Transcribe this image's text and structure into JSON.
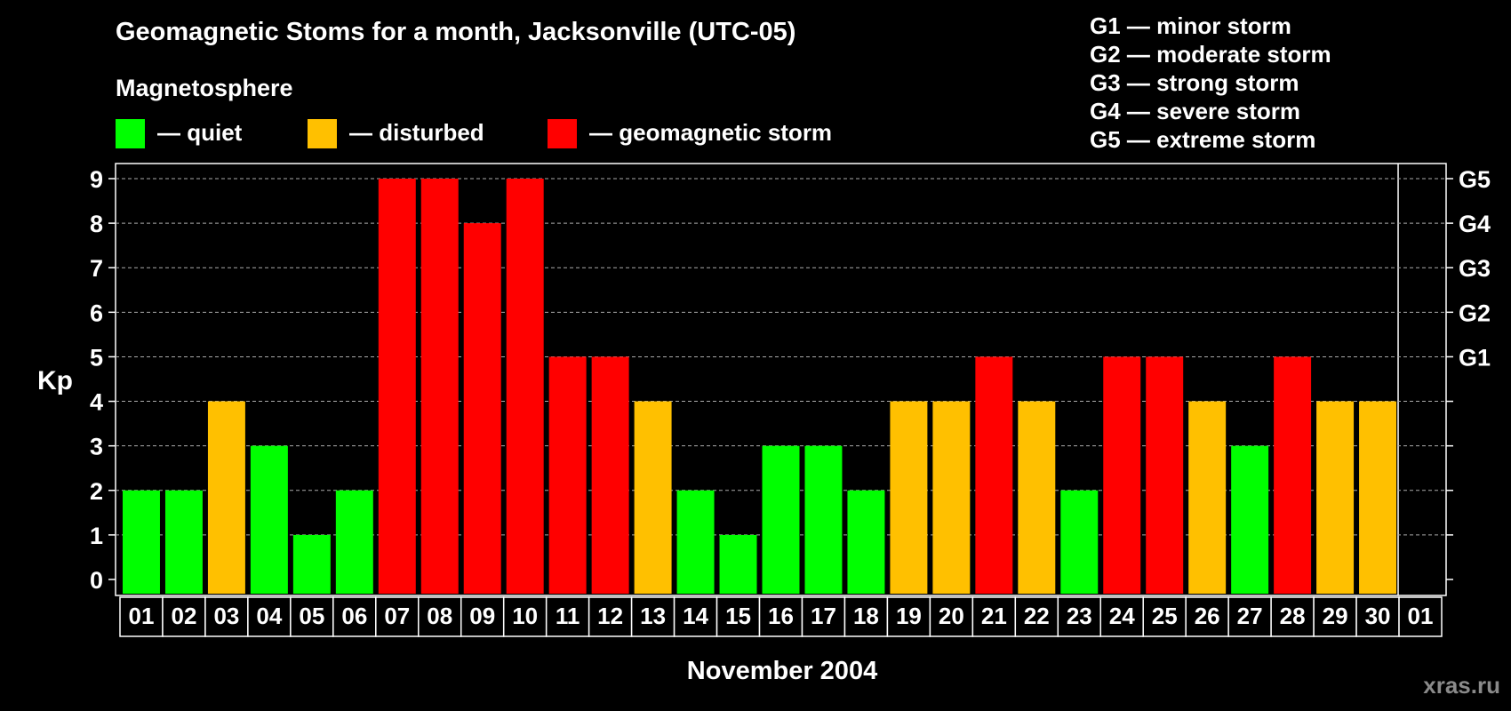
{
  "title": "Geomagnetic Stoms for a month, Jacksonville (UTC-05)",
  "magnetosphere_label": "Magnetosphere",
  "legend": [
    {
      "label": "— quiet",
      "color": "#00ff00"
    },
    {
      "label": "— disturbed",
      "color": "#ffc000"
    },
    {
      "label": "— geomagnetic storm",
      "color": "#ff0000"
    }
  ],
  "g_scale": [
    "G1 — minor storm",
    "G2 — moderate storm",
    "G3 — strong storm",
    "G4 — severe storm",
    "G5 — extreme storm"
  ],
  "watermark": "xras.ru",
  "colors": {
    "quiet": "#00ff00",
    "disturbed": "#ffc000",
    "storm": "#ff0000"
  },
  "chart_data": {
    "type": "bar",
    "categories": [
      "01",
      "02",
      "03",
      "04",
      "05",
      "06",
      "07",
      "08",
      "09",
      "10",
      "11",
      "12",
      "13",
      "14",
      "15",
      "16",
      "17",
      "18",
      "19",
      "20",
      "21",
      "22",
      "23",
      "24",
      "25",
      "26",
      "27",
      "28",
      "29",
      "30",
      "01"
    ],
    "values": [
      2,
      2,
      4,
      3,
      1,
      2,
      9,
      9,
      8,
      9,
      5,
      5,
      4,
      2,
      1,
      3,
      3,
      2,
      4,
      4,
      5,
      4,
      2,
      5,
      5,
      4,
      3,
      5,
      4,
      4,
      null
    ],
    "xlabel": "November 2004",
    "ylabel": "Kp",
    "ylim": [
      0,
      9
    ],
    "yticks": [
      "0",
      "1",
      "2",
      "3",
      "4",
      "5",
      "6",
      "7",
      "8",
      "9"
    ],
    "right_axis_labels": [
      {
        "kp": 5,
        "label": "G1"
      },
      {
        "kp": 6,
        "label": "G2"
      },
      {
        "kp": 7,
        "label": "G3"
      },
      {
        "kp": 8,
        "label": "G4"
      },
      {
        "kp": 9,
        "label": "G5"
      }
    ],
    "grid": "horizontal dashed"
  }
}
